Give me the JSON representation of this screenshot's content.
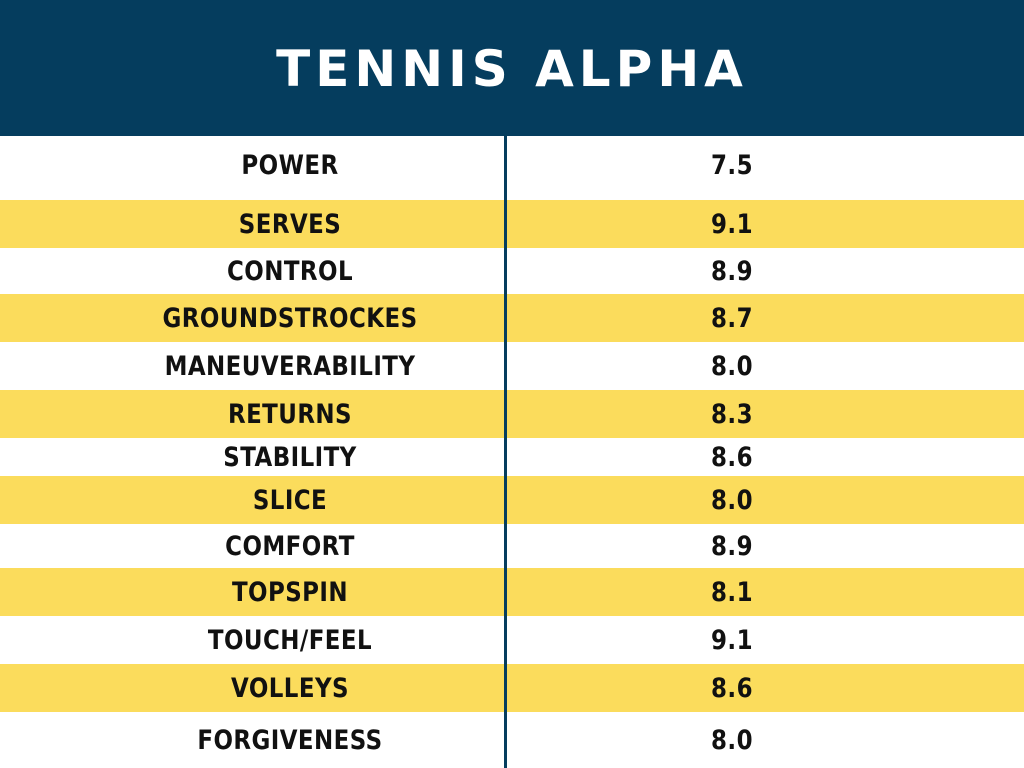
{
  "title": "TENNIS ALPHA",
  "colors": {
    "header_bg": "#053d5e",
    "stripe_yellow": "#fbdc5c",
    "stripe_white": "#ffffff",
    "divider": "#053d5e"
  },
  "rows": [
    {
      "label": "POWER",
      "value": "7.5"
    },
    {
      "label": "SERVES",
      "value": "9.1"
    },
    {
      "label": "CONTROL",
      "value": "8.9"
    },
    {
      "label": "GROUNDSTROCKES",
      "value": "8.7"
    },
    {
      "label": "MANEUVERABILITY",
      "value": "8.0"
    },
    {
      "label": "RETURNS",
      "value": "8.3"
    },
    {
      "label": "STABILITY",
      "value": "8.6"
    },
    {
      "label": "SLICE",
      "value": "8.0"
    },
    {
      "label": "COMFORT",
      "value": "8.9"
    },
    {
      "label": "TOPSPIN",
      "value": "8.1"
    },
    {
      "label": "TOUCH/FEEL",
      "value": "9.1"
    },
    {
      "label": "VOLLEYS",
      "value": "8.6"
    },
    {
      "label": "FORGIVENESS",
      "value": "8.0"
    }
  ]
}
